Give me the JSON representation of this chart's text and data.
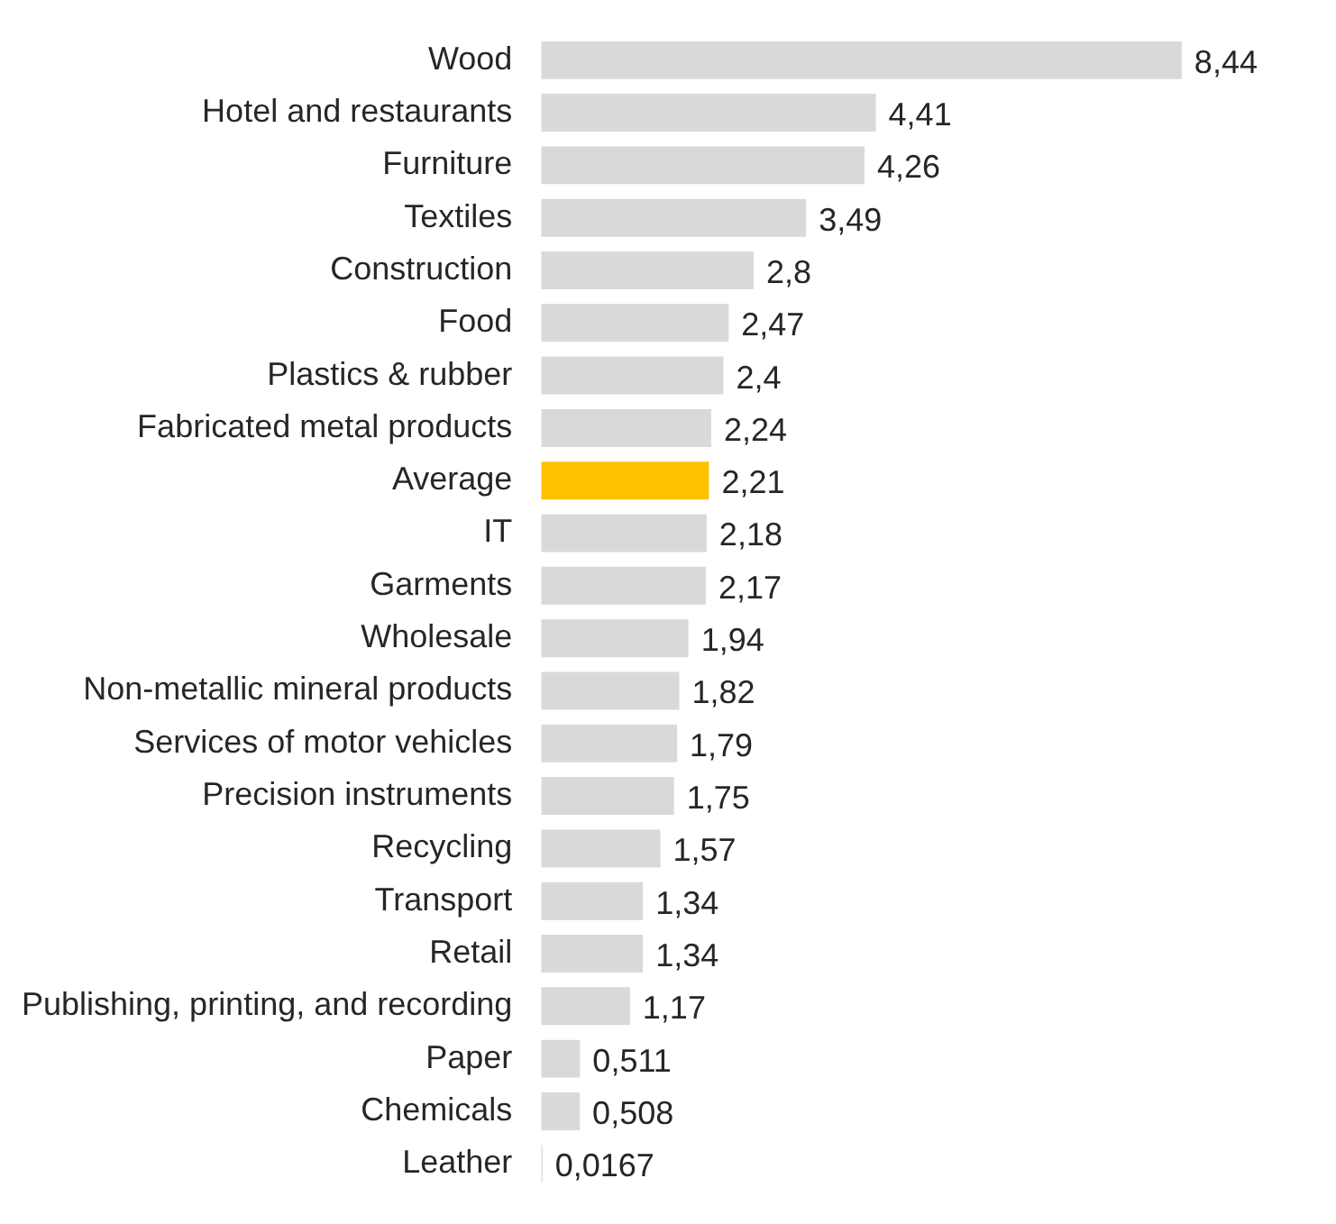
{
  "chart_data": {
    "type": "bar",
    "orientation": "horizontal",
    "categories": [
      "Wood",
      "Hotel and restaurants",
      "Furniture",
      "Textiles",
      "Construction",
      "Food",
      "Plastics & rubber",
      "Fabricated metal products",
      "Average",
      "IT",
      "Garments",
      "Wholesale",
      "Non-metallic mineral products",
      "Services of motor vehicles",
      "Precision instruments",
      "Recycling",
      "Transport",
      "Retail",
      "Publishing, printing, and recording",
      "Paper",
      "Chemicals",
      "Leather"
    ],
    "values": [
      8.44,
      4.41,
      4.26,
      3.49,
      2.8,
      2.47,
      2.4,
      2.24,
      2.21,
      2.18,
      2.17,
      1.94,
      1.82,
      1.79,
      1.75,
      1.57,
      1.34,
      1.34,
      1.17,
      0.511,
      0.508,
      0.0167
    ],
    "value_labels": [
      "8,44",
      "4,41",
      "4,26",
      "3,49",
      "2,8",
      "2,47",
      "2,4",
      "2,24",
      "2,21",
      "2,18",
      "2,17",
      "1,94",
      "1,82",
      "1,79",
      "1,75",
      "1,57",
      "1,34",
      "1,34",
      "1,17",
      "0,511",
      "0,508",
      "0,0167"
    ],
    "colors": [
      "#d9d9d9",
      "#d9d9d9",
      "#d9d9d9",
      "#d9d9d9",
      "#d9d9d9",
      "#d9d9d9",
      "#d9d9d9",
      "#d9d9d9",
      "#ffc000",
      "#d9d9d9",
      "#d9d9d9",
      "#d9d9d9",
      "#d9d9d9",
      "#d9d9d9",
      "#d9d9d9",
      "#d9d9d9",
      "#d9d9d9",
      "#d9d9d9",
      "#d9d9d9",
      "#d9d9d9",
      "#d9d9d9",
      "#d9d9d9"
    ],
    "tick_labels": "y",
    "legend": false
  }
}
